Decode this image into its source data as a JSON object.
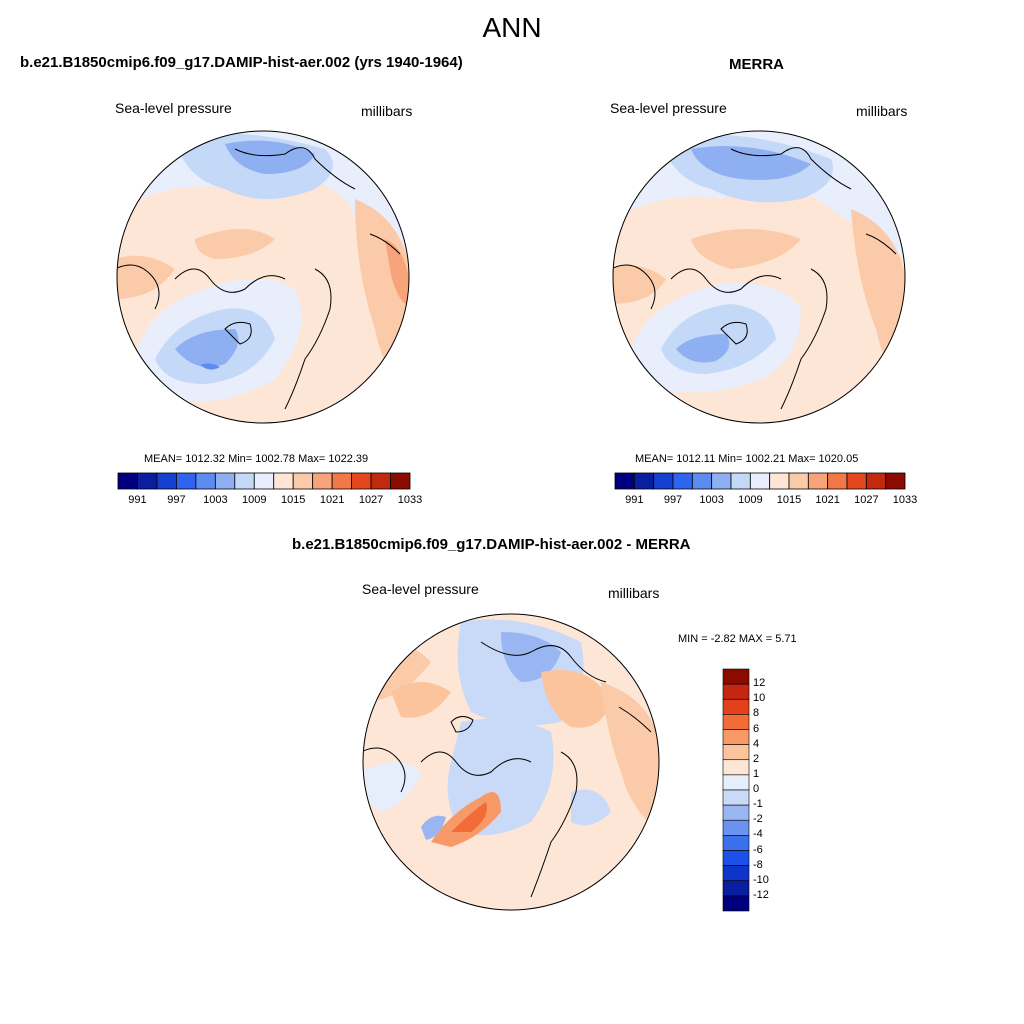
{
  "figure": {
    "title": "ANN"
  },
  "panels": [
    {
      "id": "model",
      "title": "b.e21.B1850cmip6.f09_g17.DAMIP-hist-aer.002 (yrs 1940-1964)",
      "variable": "Sea-level pressure",
      "units": "millibars",
      "stats": "MEAN= 1012.32  Min= 1002.78  Max= 1022.39"
    },
    {
      "id": "obs",
      "title": "MERRA",
      "variable": "Sea-level pressure",
      "units": "millibars",
      "stats": "MEAN= 1012.11  Min= 1002.21  Max= 1020.05"
    },
    {
      "id": "diff",
      "title": "b.e21.B1850cmip6.f09_g17.DAMIP-hist-aer.002 - MERRA",
      "variable": "Sea-level pressure",
      "units": "millibars",
      "stats": "MIN =  -2.82 MAX =   5.71"
    }
  ],
  "colorbar_abs": {
    "colors": [
      "#00007f",
      "#0a1ea0",
      "#1640d0",
      "#2f64f0",
      "#5c8cf0",
      "#8eb0f2",
      "#c4d8f8",
      "#e8eefb",
      "#fde6d6",
      "#fbcaa8",
      "#f8a47a",
      "#f2784a",
      "#e4461e",
      "#c22a10",
      "#8b0b00"
    ],
    "labels": [
      "991",
      "997",
      "1003",
      "1009",
      "1015",
      "1021",
      "1027",
      "1033"
    ]
  },
  "colorbar_diff": {
    "colors": [
      "#00007f",
      "#0a1ea0",
      "#0f34c8",
      "#1c50e8",
      "#3a70ec",
      "#6a92ee",
      "#99b6f2",
      "#c9daf8",
      "#e6eefb",
      "#fde6d6",
      "#fbc49c",
      "#f89a68",
      "#f26c38",
      "#e4401a",
      "#c42610",
      "#8b0b00"
    ],
    "labels": [
      "12",
      "10",
      "8",
      "6",
      "4",
      "2",
      "1",
      "0",
      "-1",
      "-2",
      "-4",
      "-6",
      "-8",
      "-10",
      "-12"
    ]
  }
}
